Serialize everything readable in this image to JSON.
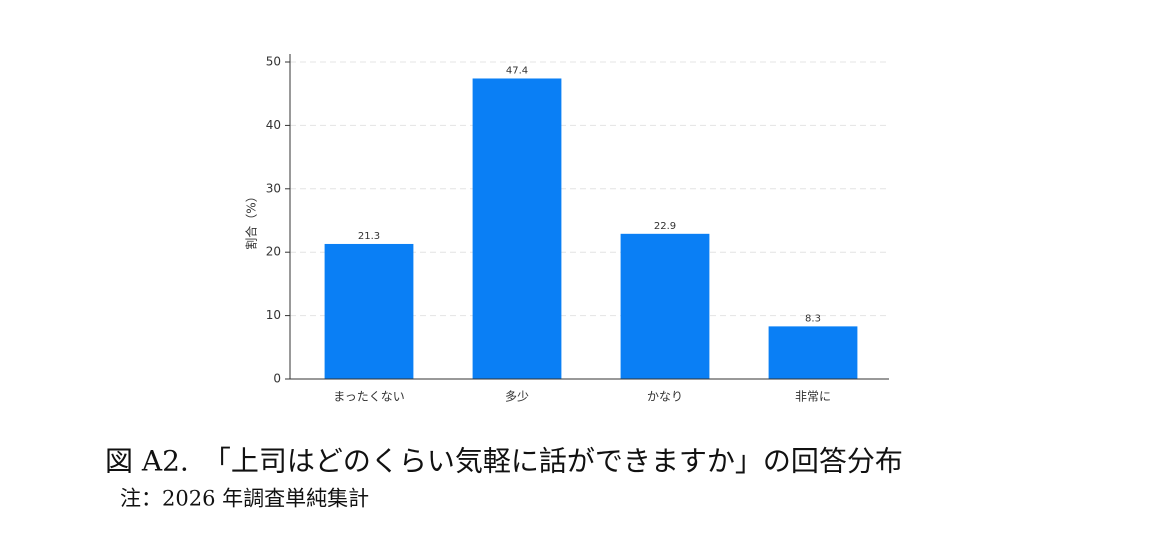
{
  "chart_data": {
    "type": "bar",
    "ylabel": "割合（%）",
    "categories": [
      "まったくない",
      "多少",
      "かなり",
      "非常に"
    ],
    "values": [
      21.3,
      47.4,
      22.9,
      8.3
    ],
    "color": "#0a7ff5",
    "ylim": [
      0,
      50
    ],
    "yticks": [
      0,
      10,
      20,
      30,
      40,
      50
    ],
    "grid": true,
    "caption": "図 A2.　「上司はどのくらい気軽に話ができますか」の回答分布",
    "note": "注：2026 年調査単純集計"
  }
}
